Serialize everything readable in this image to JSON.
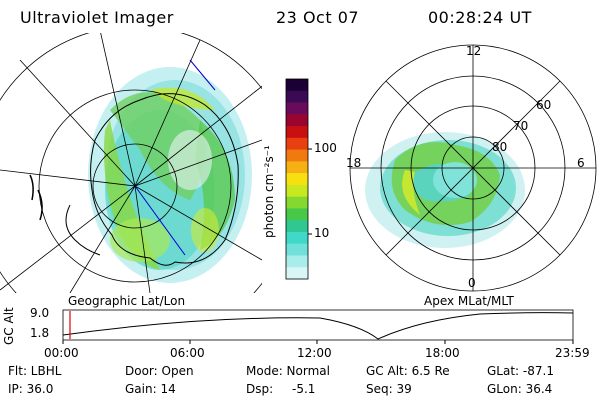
{
  "header": {
    "instrument": "Ultraviolet Imager",
    "date": "23 Oct 07",
    "time": "00:28:24 UT"
  },
  "left_map": {
    "caption": "Geographic Lat/Lon"
  },
  "right_map": {
    "caption": "Apex MLat/MLT",
    "mlt_labels": [
      "12",
      "18",
      "6",
      "0"
    ],
    "lat_labels": [
      "60",
      "70",
      "80"
    ]
  },
  "colorbar": {
    "label": "photon cm⁻²s⁻¹",
    "ticks": [
      "100",
      "10"
    ],
    "colors": [
      "#1a0033",
      "#3b0a55",
      "#6a0a5a",
      "#9a0530",
      "#c81010",
      "#e84010",
      "#f07a10",
      "#f7b013",
      "#f7e010",
      "#c8e820",
      "#84d830",
      "#48c848",
      "#30c890",
      "#40d8c8",
      "#70e0d8",
      "#a8ecec",
      "#d8f6f6"
    ]
  },
  "timeline": {
    "ylabel": "GC Alt",
    "yticks": [
      "9.0",
      "1.8"
    ],
    "xticks": [
      "00:00",
      "06:00",
      "12:00",
      "18:00",
      "23:59"
    ],
    "marker_color": "#e00000"
  },
  "footer": {
    "filter": "Flt: LBHL",
    "door": "Door: Open",
    "mode": "Mode: Normal",
    "gc_alt": "GC Alt: 6.5 Re",
    "glat": "GLat: -87.1",
    "ip": "IP: 36.0",
    "gain": "Gain: 14",
    "dsp_label": "Dsp:",
    "dsp_value": "-5.1",
    "seq": "Seq: 39",
    "glon": "GLon:  36.4"
  }
}
